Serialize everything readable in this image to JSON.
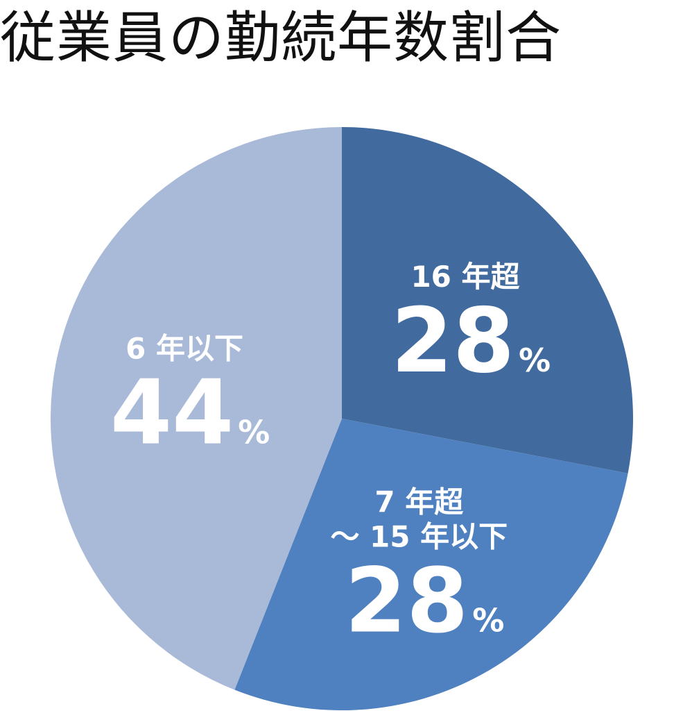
{
  "chart_data": {
    "type": "pie",
    "title": "従業員の勤続年数割合",
    "slices": [
      {
        "name": "16 年超",
        "label_lines": [
          "16 年超"
        ],
        "value": 28,
        "unit": "%",
        "color": "#416a9e"
      },
      {
        "name": "7 年超〜 15 年以下",
        "label_lines": [
          "7 年超",
          "〜 15 年以下"
        ],
        "value": 28,
        "unit": "%",
        "color": "#4f80bf"
      },
      {
        "name": "6 年以下",
        "label_lines": [
          "6 年以下"
        ],
        "value": 44,
        "unit": "%",
        "color": "#a9b9d8"
      }
    ],
    "start_angle_deg": 0,
    "direction": "clockwise",
    "legend": "none"
  }
}
